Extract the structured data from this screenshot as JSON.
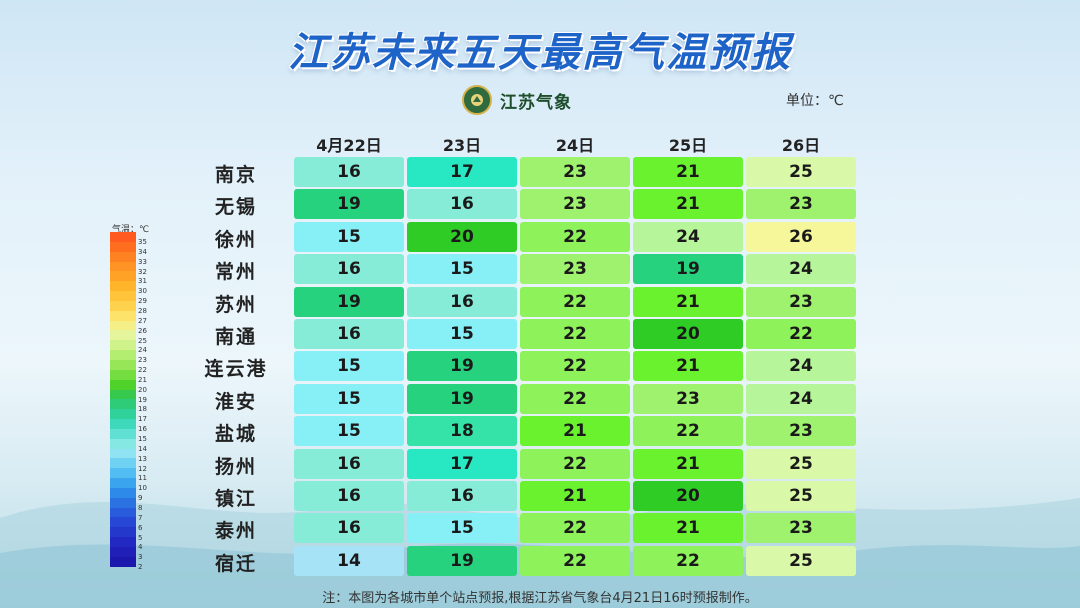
{
  "title": "江苏未来五天最高气温预报",
  "logo_text": "江苏气象",
  "unit": "单位：℃",
  "note": "注：本图为各城市单个站点预报,根据江苏省气象台4月21日16时预报制作。",
  "legend": {
    "title": "气温：℃",
    "labels": [
      "35",
      "34",
      "33",
      "32",
      "31",
      "30",
      "29",
      "28",
      "27",
      "26",
      "25",
      "24",
      "23",
      "22",
      "21",
      "20",
      "19",
      "18",
      "17",
      "16",
      "15",
      "14",
      "13",
      "12",
      "11",
      "10",
      "9",
      "8",
      "7",
      "6",
      "5",
      "4",
      "3",
      "2"
    ],
    "colors": [
      "#ff5a1f",
      "#ff6e1f",
      "#ff8222",
      "#ff9424",
      "#ffa226",
      "#ffb42a",
      "#ffc43a",
      "#ffd24e",
      "#fde36a",
      "#f5ef88",
      "#e4f59b",
      "#cff38a",
      "#b4ee70",
      "#96e657",
      "#74dd3f",
      "#4fd22a",
      "#36c94e",
      "#2ecb78",
      "#30d19b",
      "#3ed8bb",
      "#5fe0d2",
      "#86e8e2",
      "#8fe3f3",
      "#6fd2f3",
      "#52bdf2",
      "#3ba4ee",
      "#2d8ae8",
      "#2a72e2",
      "#285cdc",
      "#2648d4",
      "#2438cc",
      "#2228c2",
      "#2020b8",
      "#1d18ad"
    ]
  },
  "chart_data": {
    "type": "table",
    "title": "江苏未来五天最高气温预报",
    "unit": "℃",
    "columns": [
      "4月22日",
      "23日",
      "24日",
      "25日",
      "26日"
    ],
    "rows": [
      {
        "city": "南京",
        "values": [
          16,
          17,
          23,
          21,
          25
        ]
      },
      {
        "city": "无锡",
        "values": [
          19,
          16,
          23,
          21,
          23
        ]
      },
      {
        "city": "徐州",
        "values": [
          15,
          20,
          22,
          24,
          26
        ]
      },
      {
        "city": "常州",
        "values": [
          16,
          15,
          23,
          19,
          24
        ]
      },
      {
        "city": "苏州",
        "values": [
          19,
          16,
          22,
          21,
          23
        ]
      },
      {
        "city": "南通",
        "values": [
          16,
          15,
          22,
          20,
          22
        ]
      },
      {
        "city": "连云港",
        "values": [
          15,
          19,
          22,
          21,
          24
        ]
      },
      {
        "city": "淮安",
        "values": [
          15,
          19,
          22,
          23,
          24
        ]
      },
      {
        "city": "盐城",
        "values": [
          15,
          18,
          21,
          22,
          23
        ]
      },
      {
        "city": "扬州",
        "values": [
          16,
          17,
          22,
          21,
          25
        ]
      },
      {
        "city": "镇江",
        "values": [
          16,
          16,
          21,
          20,
          25
        ]
      },
      {
        "city": "泰州",
        "values": [
          16,
          15,
          22,
          21,
          23
        ]
      },
      {
        "city": "宿迁",
        "values": [
          14,
          19,
          22,
          22,
          25
        ]
      }
    ],
    "color_scale": {
      "14": "#a6e3f6",
      "15": "#86f0f6",
      "16": "#86ecd8",
      "17": "#28e8c4",
      "18": "#35e3a8",
      "19": "#27d27e",
      "20": "#30cc26",
      "21": "#6af22f",
      "22": "#8ef25a",
      "23": "#9ef26e",
      "24": "#b6f59a",
      "25": "#daf9a8",
      "26": "#f6f79a"
    }
  }
}
